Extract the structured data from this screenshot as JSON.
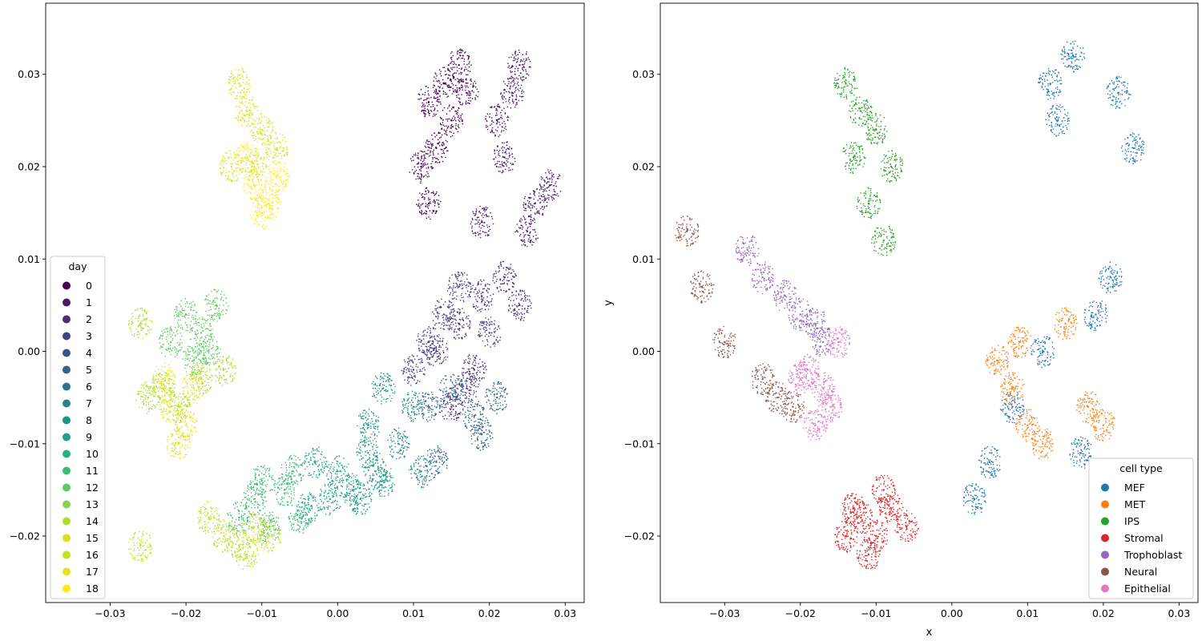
{
  "chart_data": [
    {
      "type": "scatter",
      "xlabel": "",
      "ylabel": "",
      "xlim": [
        -0.0385,
        0.0325
      ],
      "ylim": [
        -0.0272,
        0.0377
      ],
      "x_ticks": [
        -0.03,
        -0.02,
        -0.01,
        0.0,
        0.01,
        0.02,
        0.03
      ],
      "x_tick_labels": [
        "−0.03",
        "−0.02",
        "−0.01",
        "0.00",
        "0.01",
        "0.02",
        "0.03"
      ],
      "y_ticks": [
        -0.02,
        -0.01,
        0.0,
        0.01,
        0.02,
        0.03
      ],
      "y_tick_labels": [
        "−0.02",
        "−0.01",
        "0.00",
        "0.01",
        "0.02",
        "0.03"
      ],
      "legend": {
        "title": "day",
        "placement": "lower-left",
        "entries": [
          "0",
          "1",
          "2",
          "3",
          "4",
          "5",
          "6",
          "7",
          "8",
          "9",
          "10",
          "11",
          "12",
          "13",
          "14",
          "15",
          "16",
          "17",
          "18"
        ],
        "colors": [
          "#440154",
          "#48186a",
          "#472d7b",
          "#424086",
          "#3b528b",
          "#33638d",
          "#2c728e",
          "#26828e",
          "#21918c",
          "#1fa088",
          "#28ae80",
          "#3fbc73",
          "#5ec962",
          "#84d44b",
          "#addc30",
          "#d8e219",
          "#c2df23",
          "#e5e419",
          "#fde725"
        ]
      },
      "series": [
        {
          "name": "0",
          "x": [
            0.012,
            0.014,
            0.016,
            0.015,
            0.013,
            0.011,
            0.017,
            0.012
          ],
          "y": [
            0.027,
            0.029,
            0.031,
            0.025,
            0.022,
            0.02,
            0.028,
            0.016
          ]
        },
        {
          "name": "1",
          "x": [
            0.021,
            0.023,
            0.024,
            0.022,
            0.026,
            0.028,
            0.025,
            0.019
          ],
          "y": [
            0.025,
            0.028,
            0.031,
            0.021,
            0.016,
            0.018,
            0.013,
            0.014
          ]
        },
        {
          "name": "2",
          "x": [
            0.013,
            0.016,
            0.019,
            0.022,
            0.024,
            0.018,
            0.015
          ],
          "y": [
            0.0,
            0.003,
            0.006,
            0.008,
            0.005,
            -0.002,
            -0.006
          ]
        },
        {
          "name": "3",
          "x": [
            0.01,
            0.012,
            0.014,
            0.017,
            0.02,
            0.016
          ],
          "y": [
            -0.002,
            0.001,
            0.004,
            -0.004,
            0.002,
            0.007
          ]
        },
        {
          "name": "5",
          "x": [
            0.012,
            0.015,
            0.018,
            0.021,
            0.013,
            0.019
          ],
          "y": [
            -0.006,
            -0.004,
            -0.007,
            -0.005,
            -0.012,
            -0.009
          ]
        },
        {
          "name": "8",
          "x": [
            0.003,
            0.005,
            0.008,
            0.01,
            0.006,
            0.004,
            0.011
          ],
          "y": [
            -0.016,
            -0.013,
            -0.01,
            -0.006,
            -0.004,
            -0.008,
            -0.013
          ]
        },
        {
          "name": "9",
          "x": [
            -0.004,
            -0.001,
            0.002,
            0.0,
            -0.003,
            0.004,
            0.006
          ],
          "y": [
            -0.017,
            -0.016,
            -0.015,
            -0.013,
            -0.012,
            -0.011,
            -0.014
          ]
        },
        {
          "name": "11",
          "x": [
            -0.013,
            -0.011,
            -0.009,
            -0.007,
            -0.005,
            -0.01,
            -0.006
          ],
          "y": [
            -0.018,
            -0.016,
            -0.019,
            -0.015,
            -0.018,
            -0.014,
            -0.013
          ]
        },
        {
          "name": "12",
          "x": [
            -0.02,
            -0.018,
            -0.016,
            -0.022,
            -0.019,
            -0.017
          ],
          "y": [
            0.004,
            0.002,
            0.005,
            0.001,
            -0.001,
            0.0
          ]
        },
        {
          "name": "14",
          "x": [
            -0.023,
            -0.021,
            -0.018,
            -0.025,
            -0.026,
            -0.015
          ],
          "y": [
            -0.004,
            -0.006,
            -0.003,
            -0.005,
            0.003,
            -0.002
          ]
        },
        {
          "name": "15",
          "x": [
            -0.013,
            -0.012,
            -0.01,
            -0.008,
            -0.014,
            -0.011
          ],
          "y": [
            0.029,
            0.026,
            0.024,
            0.022,
            0.02,
            0.02
          ]
        },
        {
          "name": "16",
          "x": [
            -0.015,
            -0.013,
            -0.011,
            -0.009,
            -0.017,
            -0.012,
            -0.026
          ],
          "y": [
            -0.02,
            -0.021,
            -0.019,
            -0.02,
            -0.018,
            -0.022,
            -0.021
          ]
        },
        {
          "name": "17",
          "x": [
            -0.022,
            -0.02,
            -0.023,
            -0.019,
            -0.021
          ],
          "y": [
            -0.006,
            -0.008,
            -0.003,
            -0.004,
            -0.01
          ]
        },
        {
          "name": "18",
          "x": [
            -0.011,
            -0.009,
            -0.012,
            -0.008,
            -0.01
          ],
          "y": [
            0.018,
            0.016,
            0.021,
            0.019,
            0.015
          ]
        }
      ]
    },
    {
      "type": "scatter",
      "xlabel": "x",
      "ylabel": "y",
      "xlim": [
        -0.0385,
        0.0325
      ],
      "ylim": [
        -0.0272,
        0.0377
      ],
      "x_ticks": [
        -0.03,
        -0.02,
        -0.01,
        0.0,
        0.01,
        0.02,
        0.03
      ],
      "x_tick_labels": [
        "−0.03",
        "−0.02",
        "−0.01",
        "0.00",
        "0.01",
        "0.02",
        "0.03"
      ],
      "y_ticks": [
        -0.02,
        -0.01,
        0.0,
        0.01,
        0.02,
        0.03
      ],
      "y_tick_labels": [
        "−0.02",
        "−0.01",
        "0.00",
        "0.01",
        "0.02",
        "0.03"
      ],
      "legend": {
        "title": "cell type",
        "placement": "lower-right",
        "entries": [
          "MEF",
          "MET",
          "IPS",
          "Stromal",
          "Trophoblast",
          "Neural",
          "Epithelial"
        ],
        "colors": [
          "#1f77b4",
          "#ff7f0e",
          "#2ca02c",
          "#d62728",
          "#9467bd",
          "#8c564b",
          "#e377c2"
        ]
      },
      "series": [
        {
          "name": "MEF",
          "x": [
            0.013,
            0.016,
            0.022,
            0.024,
            0.019,
            0.012,
            0.008,
            0.005,
            0.003,
            0.017,
            0.021,
            0.014
          ],
          "y": [
            0.029,
            0.032,
            0.028,
            0.022,
            0.004,
            0.0,
            -0.006,
            -0.012,
            -0.016,
            -0.011,
            0.008,
            0.025
          ]
        },
        {
          "name": "MET",
          "x": [
            0.006,
            0.008,
            0.01,
            0.012,
            0.015,
            0.018,
            0.02,
            0.009
          ],
          "y": [
            -0.001,
            -0.004,
            -0.008,
            -0.01,
            0.003,
            -0.006,
            -0.008,
            0.001
          ]
        },
        {
          "name": "IPS",
          "x": [
            -0.014,
            -0.012,
            -0.01,
            -0.008,
            -0.013,
            -0.011,
            -0.009
          ],
          "y": [
            0.029,
            0.026,
            0.024,
            0.02,
            0.021,
            0.016,
            0.012
          ]
        },
        {
          "name": "Stromal",
          "x": [
            -0.014,
            -0.012,
            -0.01,
            -0.008,
            -0.006,
            -0.011,
            -0.009,
            -0.013
          ],
          "y": [
            -0.02,
            -0.018,
            -0.02,
            -0.017,
            -0.019,
            -0.022,
            -0.015,
            -0.017
          ]
        },
        {
          "name": "Trophoblast",
          "x": [
            -0.027,
            -0.025,
            -0.022,
            -0.02,
            -0.018,
            -0.017
          ],
          "y": [
            0.011,
            0.008,
            0.006,
            0.004,
            0.003,
            0.001
          ]
        },
        {
          "name": "Neural",
          "x": [
            -0.035,
            -0.033,
            -0.03,
            -0.025,
            -0.023,
            -0.021
          ],
          "y": [
            0.013,
            0.007,
            0.001,
            -0.003,
            -0.005,
            -0.006
          ]
        },
        {
          "name": "Epithelial",
          "x": [
            -0.019,
            -0.017,
            -0.016,
            -0.018,
            -0.015,
            -0.02
          ],
          "y": [
            -0.002,
            -0.004,
            -0.006,
            -0.008,
            0.001,
            -0.003
          ]
        }
      ]
    }
  ]
}
